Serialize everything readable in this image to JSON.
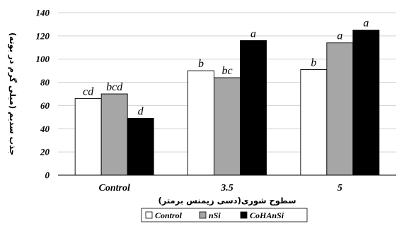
{
  "chart_data": {
    "type": "bar",
    "categories": [
      "Control",
      "3.5",
      "5"
    ],
    "series": [
      {
        "name": "Control",
        "values": [
          66,
          90,
          91
        ],
        "color": "#ffffff",
        "labels": [
          "cd",
          "b",
          "b"
        ]
      },
      {
        "name": "nSi",
        "values": [
          70,
          84,
          114
        ],
        "color": "#a6a6a6",
        "labels": [
          "bcd",
          "bc",
          "a"
        ]
      },
      {
        "name": "CoHAnSi",
        "values": [
          49,
          116,
          125
        ],
        "color": "#000000",
        "labels": [
          "d",
          "a",
          "a"
        ]
      }
    ],
    "xlabel": "سطوح شوری(دسی زیمنس برمتر)",
    "ylabel": "جذب سدیم (میلی گرم در بوته)",
    "ylim": [
      0,
      140
    ],
    "yticks": [
      0,
      20,
      40,
      60,
      80,
      100,
      120,
      140
    ],
    "grid": true,
    "legend_position": "bottom"
  }
}
